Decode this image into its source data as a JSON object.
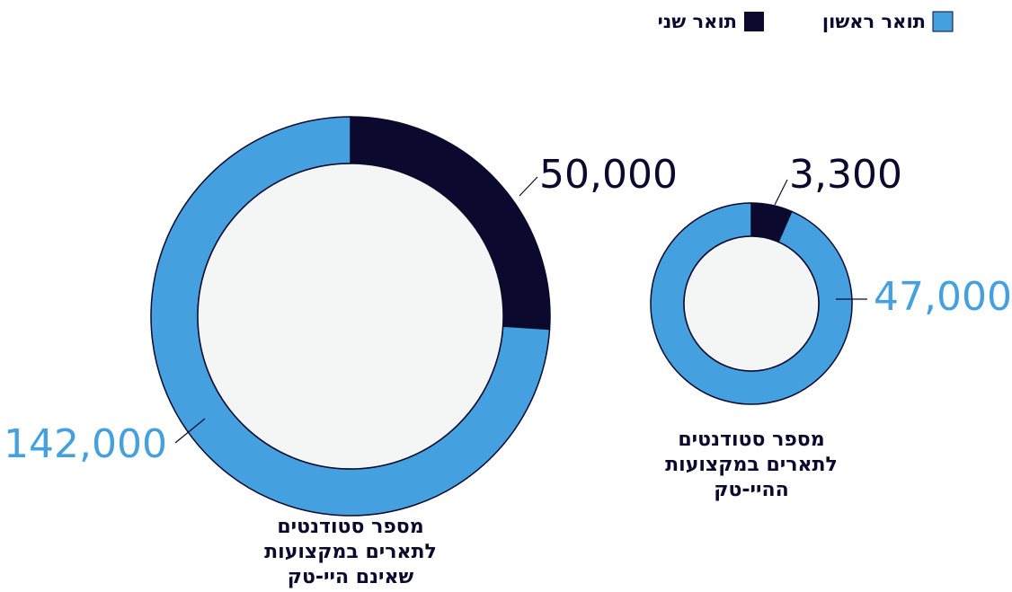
{
  "legend": [
    {
      "name": "תואר ראשון",
      "color": "#45a0df"
    },
    {
      "name": "תואר שני",
      "color": "#0b0a2e"
    }
  ],
  "chart_data": [
    {
      "type": "donut",
      "title": [
        "מספר סטודנטים",
        "לתארים במקצועות",
        "שאינם היי-טק"
      ],
      "values": [
        142000,
        50000
      ],
      "value_labels": [
        "142,000",
        "50,000"
      ]
    },
    {
      "type": "donut",
      "title": [
        "מספר סטודנטים",
        "לתארים במקצועות",
        "ההיי-טק"
      ],
      "values": [
        47000,
        3300
      ],
      "value_labels": [
        "47,000",
        "3,300"
      ]
    }
  ]
}
